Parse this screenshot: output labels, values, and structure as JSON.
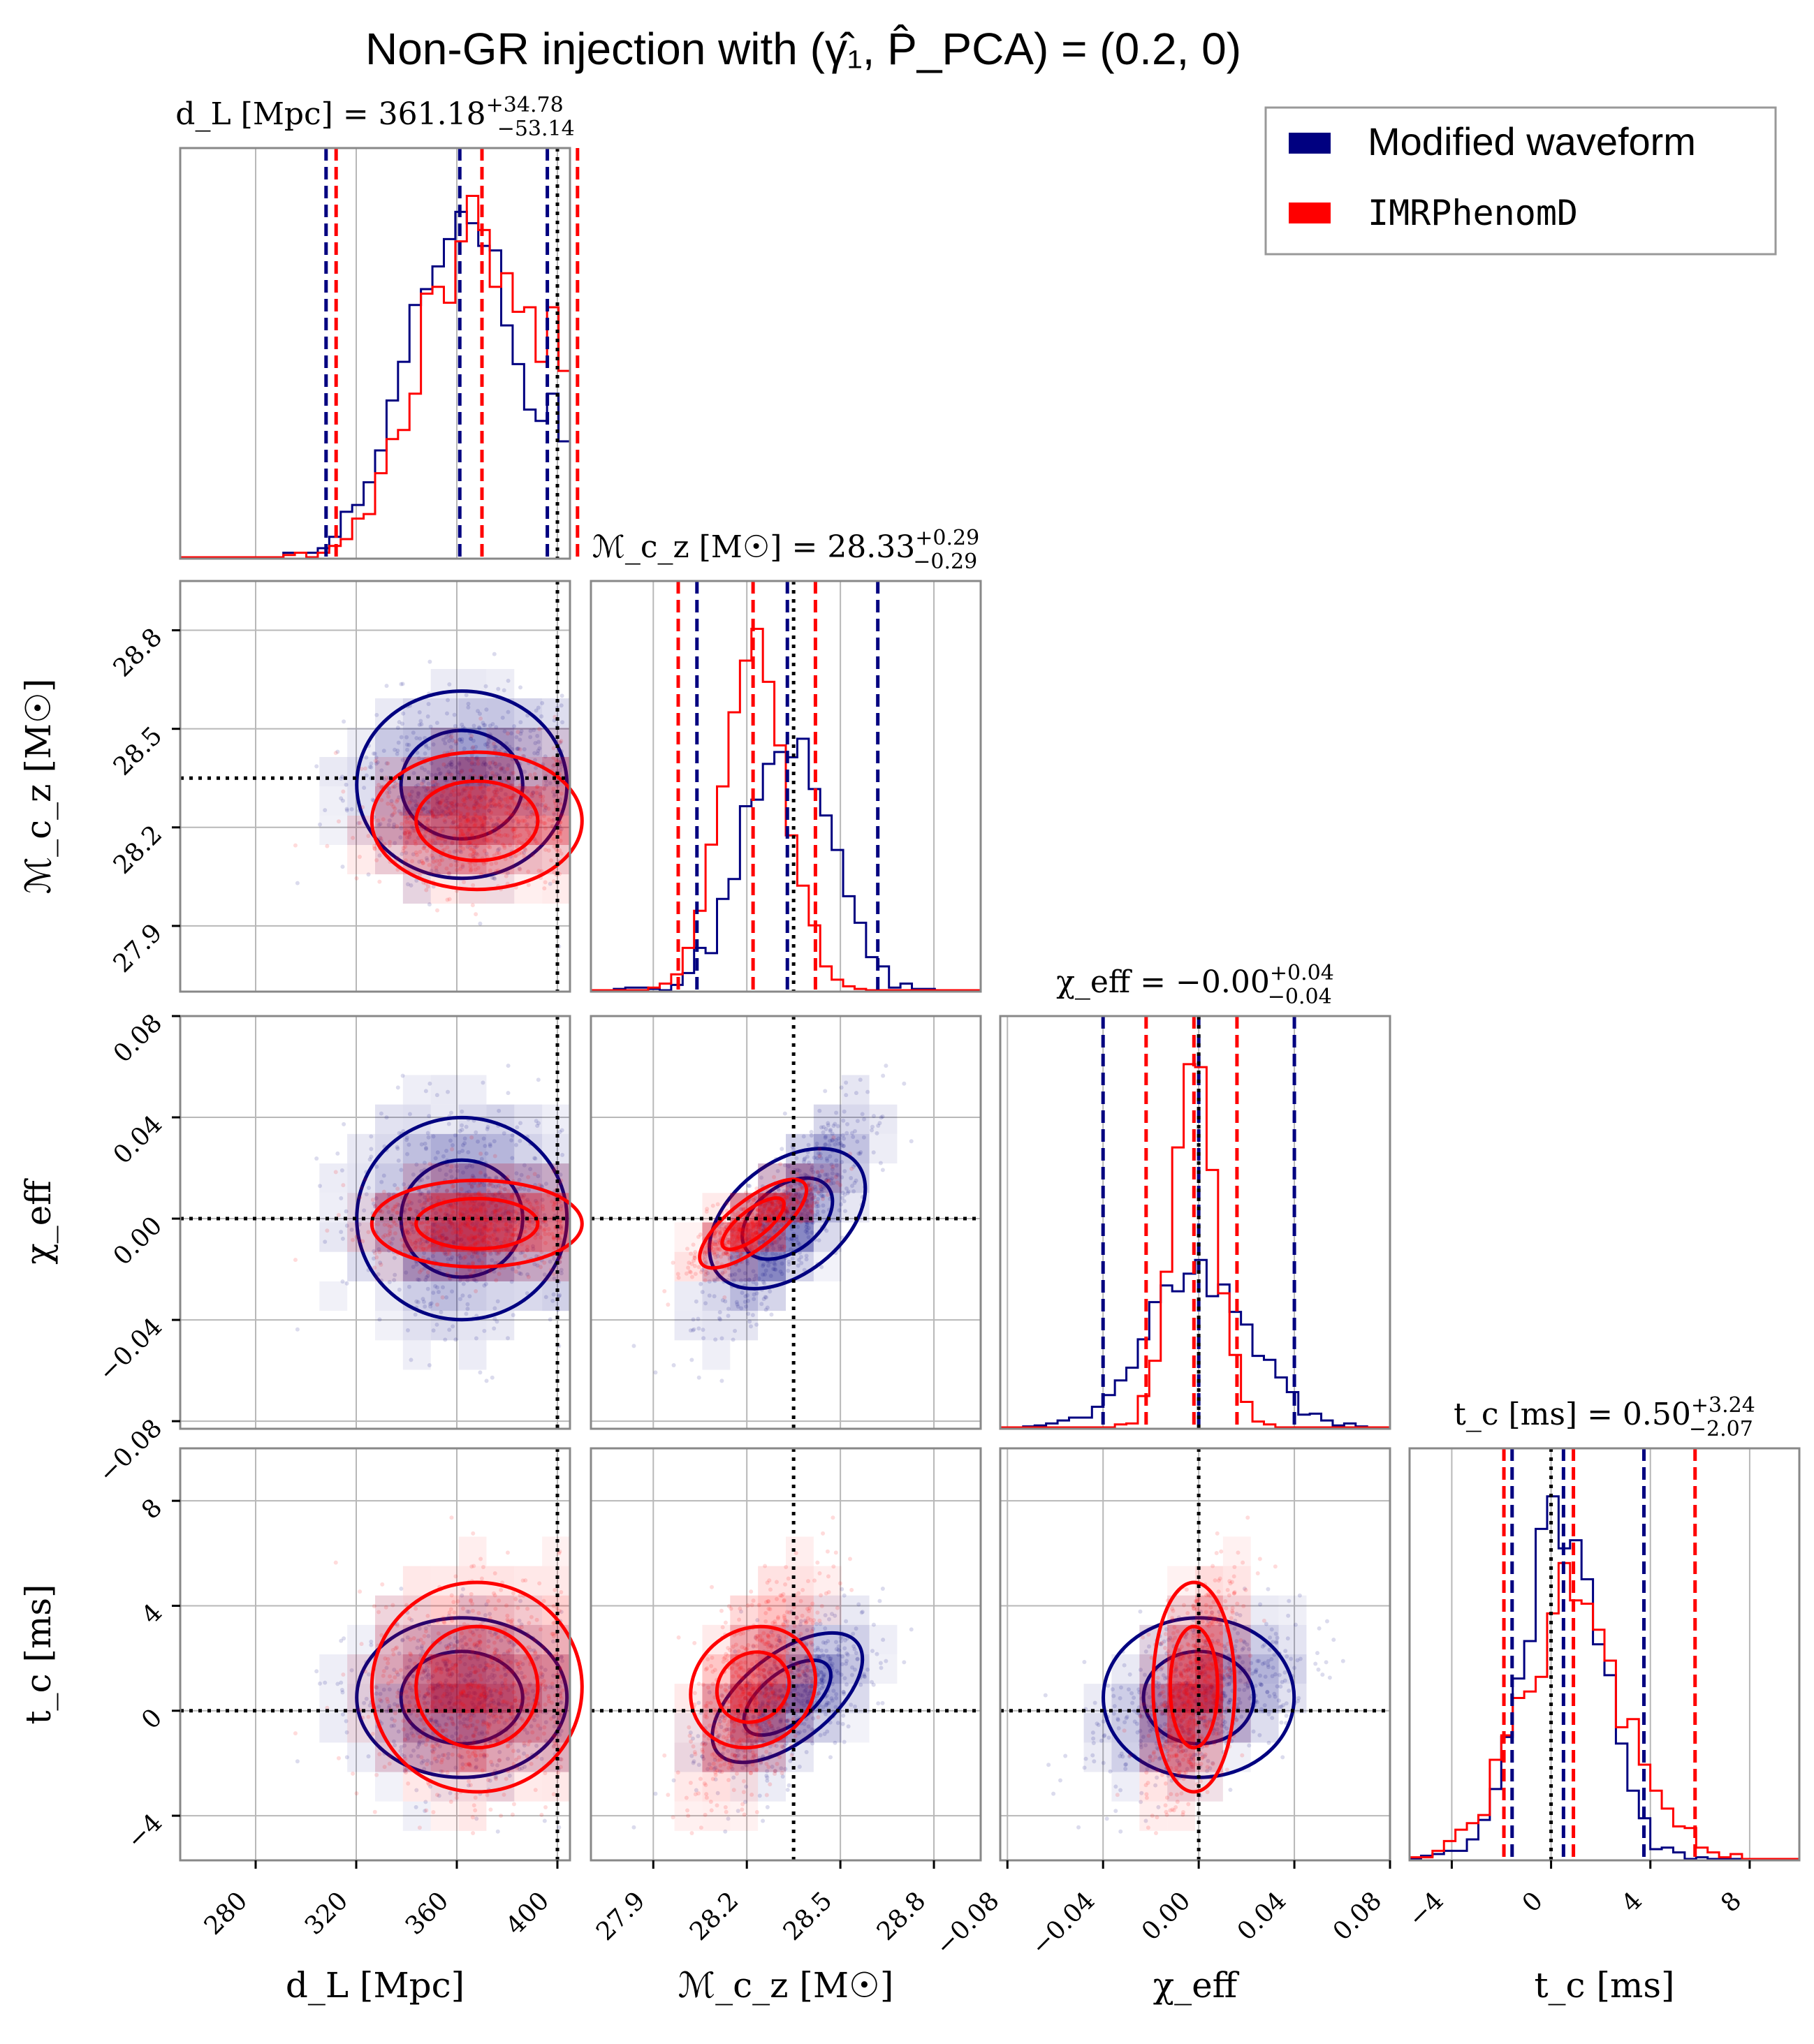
{
  "chart_data": {
    "type": "corner",
    "title": "Non-GR injection with (γ̂₁, P̂_PCA) = (0.2, 0)",
    "legend": {
      "placement": "top-right",
      "entries": [
        {
          "label": "Modified waveform",
          "color": "#000080"
        },
        {
          "label": "IMRPhenomD",
          "color": "#ff0000"
        }
      ]
    },
    "parameters": [
      {
        "key": "dl",
        "axis_label": "d_L [Mpc]",
        "title": {
          "name": "d_L [Mpc]",
          "eq": " = ",
          "value": "361.18",
          "plus": "+34.78",
          "minus": "−53.14"
        },
        "range": [
          250,
          405
        ],
        "ticks": [
          280,
          320,
          360,
          400
        ],
        "tick_labels": [
          "280",
          "320",
          "360",
          "400"
        ],
        "injected": 400
      },
      {
        "key": "mc",
        "axis_label": "ℳ_c_z [M☉]",
        "title": {
          "name": "ℳ_c_z [M☉]",
          "eq": " = ",
          "value": "28.33",
          "plus": "+0.29",
          "minus": "−0.29"
        },
        "range": [
          27.7,
          28.95
        ],
        "ticks": [
          27.9,
          28.2,
          28.5,
          28.8
        ],
        "tick_labels": [
          "27.9",
          "28.2",
          "28.5",
          "28.8"
        ],
        "injected": 28.35
      },
      {
        "key": "chi",
        "axis_label": "χ_eff",
        "title": {
          "name": "χ_eff",
          "eq": " = ",
          "value": "−0.00",
          "plus": "+0.04",
          "minus": "−0.04"
        },
        "range": [
          -0.083,
          0.08
        ],
        "ticks": [
          -0.08,
          -0.04,
          0.0,
          0.04,
          0.08
        ],
        "tick_labels": [
          "−0.08",
          "−0.04",
          "0.00",
          "0.04",
          "0.08"
        ],
        "injected": 0.0
      },
      {
        "key": "tc",
        "axis_label": "t_c [ms]",
        "title": {
          "name": "t_c [ms]",
          "eq": " = ",
          "value": "0.50",
          "plus": "+3.24",
          "minus": "−2.07"
        },
        "range": [
          -5.7,
          10
        ],
        "ticks": [
          -4,
          0,
          4,
          8
        ],
        "tick_labels": [
          "−4",
          "0",
          "4",
          "8"
        ],
        "injected": 0.0
      }
    ],
    "histograms": [
      {
        "param": "dl",
        "blue_quantiles": [
          308,
          361.18,
          396
        ],
        "red_quantiles": [
          312,
          370,
          408
        ]
      },
      {
        "param": "mc",
        "blue_quantiles": [
          28.04,
          28.33,
          28.62
        ],
        "red_quantiles": [
          27.98,
          28.22,
          28.42
        ]
      },
      {
        "param": "chi",
        "blue_quantiles": [
          -0.04,
          0.0,
          0.04
        ],
        "red_quantiles": [
          -0.022,
          -0.002,
          0.016
        ]
      },
      {
        "param": "tc",
        "blue_quantiles": [
          -1.57,
          0.5,
          3.74
        ],
        "red_quantiles": [
          -1.9,
          0.9,
          5.8
        ]
      }
    ],
    "model_params": {
      "blue": {
        "dl_mean": 362,
        "dl_std": 22,
        "mc_mean": 28.33,
        "mc_std": 0.15,
        "chi_mean": 0.0,
        "chi_std": 0.021,
        "tc_mean": 0.5,
        "tc_std": 1.6
      },
      "red": {
        "dl_mean": 368,
        "dl_std": 22,
        "mc_mean": 28.22,
        "mc_std": 0.11,
        "chi_mean": -0.002,
        "chi_std": 0.009,
        "tc_mean": 0.9,
        "tc_std": 2.1
      }
    }
  }
}
